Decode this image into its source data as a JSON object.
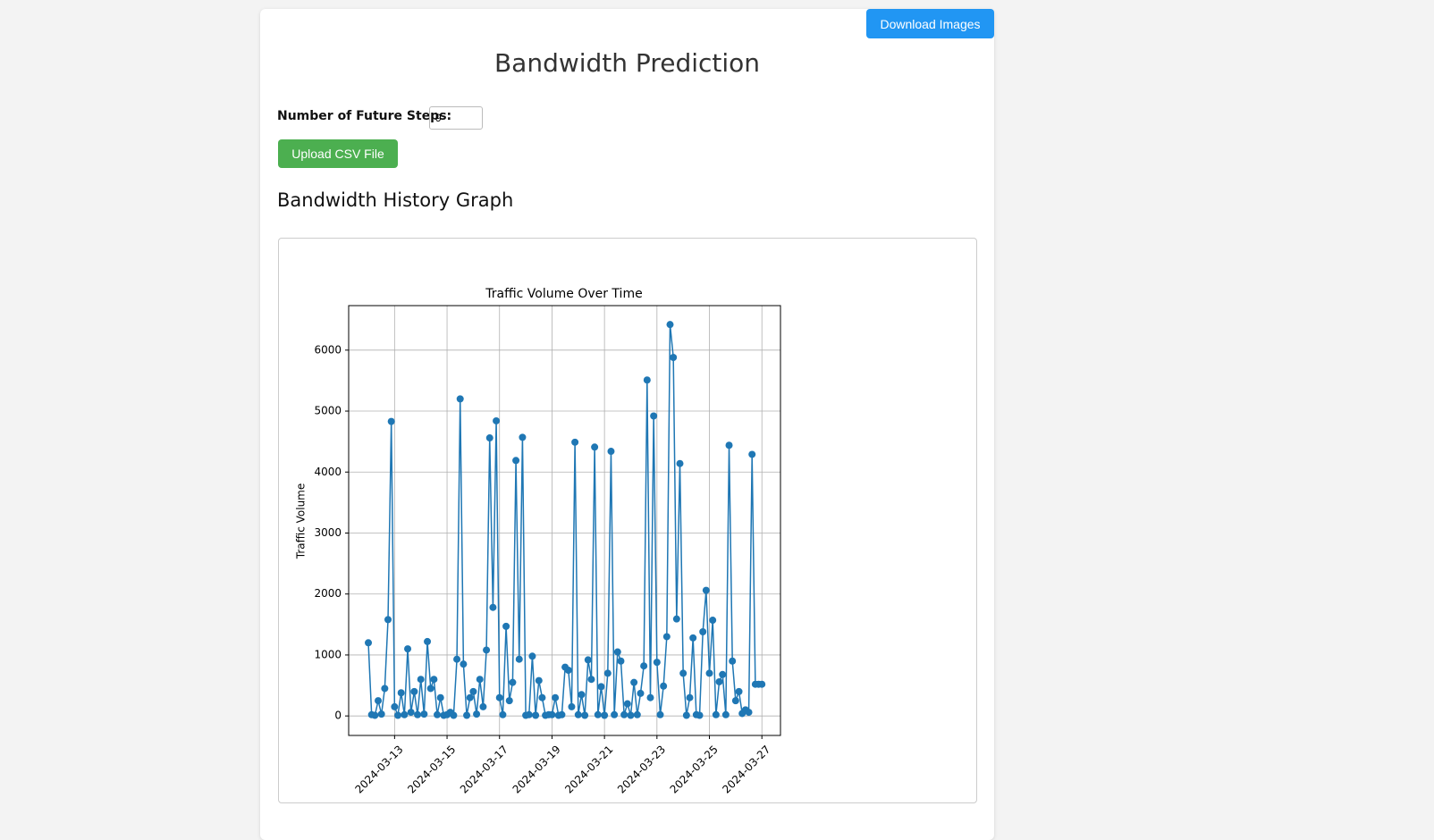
{
  "header": {
    "download_button": "Download Images",
    "title": "Bandwidth Prediction"
  },
  "form": {
    "steps_label": "Number of Future Steps:",
    "steps_value": "9",
    "upload_button": "Upload CSV File"
  },
  "section_title": "Bandwidth History Graph",
  "chart_data": {
    "type": "line",
    "title": "Traffic Volume Over Time",
    "y_label": "Traffic Volume",
    "color": "#1f77b4",
    "grid": true,
    "markers": true,
    "x": [
      "2024-03-12 00:00",
      "2024-03-12 03:00",
      "2024-03-12 06:00",
      "2024-03-12 09:00",
      "2024-03-12 12:00",
      "2024-03-12 15:00",
      "2024-03-12 18:00",
      "2024-03-12 21:00",
      "2024-03-13 00:00",
      "2024-03-13 03:00",
      "2024-03-13 06:00",
      "2024-03-13 09:00",
      "2024-03-13 12:00",
      "2024-03-13 15:00",
      "2024-03-13 18:00",
      "2024-03-13 21:00",
      "2024-03-14 00:00",
      "2024-03-14 03:00",
      "2024-03-14 06:00",
      "2024-03-14 09:00",
      "2024-03-14 12:00",
      "2024-03-14 15:00",
      "2024-03-14 18:00",
      "2024-03-14 21:00",
      "2024-03-15 00:00",
      "2024-03-15 03:00",
      "2024-03-15 06:00",
      "2024-03-15 09:00",
      "2024-03-15 12:00",
      "2024-03-15 15:00",
      "2024-03-15 18:00",
      "2024-03-15 21:00",
      "2024-03-16 00:00",
      "2024-03-16 03:00",
      "2024-03-16 06:00",
      "2024-03-16 09:00",
      "2024-03-16 12:00",
      "2024-03-16 15:00",
      "2024-03-16 18:00",
      "2024-03-16 21:00",
      "2024-03-17 00:00",
      "2024-03-17 03:00",
      "2024-03-17 06:00",
      "2024-03-17 09:00",
      "2024-03-17 12:00",
      "2024-03-17 15:00",
      "2024-03-17 18:00",
      "2024-03-17 21:00",
      "2024-03-18 00:00",
      "2024-03-18 03:00",
      "2024-03-18 06:00",
      "2024-03-18 09:00",
      "2024-03-18 12:00",
      "2024-03-18 15:00",
      "2024-03-18 18:00",
      "2024-03-18 21:00",
      "2024-03-19 00:00",
      "2024-03-19 03:00",
      "2024-03-19 06:00",
      "2024-03-19 09:00",
      "2024-03-19 12:00",
      "2024-03-19 15:00",
      "2024-03-19 18:00",
      "2024-03-19 21:00",
      "2024-03-20 00:00",
      "2024-03-20 03:00",
      "2024-03-20 06:00",
      "2024-03-20 09:00",
      "2024-03-20 12:00",
      "2024-03-20 15:00",
      "2024-03-20 18:00",
      "2024-03-20 21:00",
      "2024-03-21 00:00",
      "2024-03-21 03:00",
      "2024-03-21 06:00",
      "2024-03-21 09:00",
      "2024-03-21 12:00",
      "2024-03-21 15:00",
      "2024-03-21 18:00",
      "2024-03-21 21:00",
      "2024-03-22 00:00",
      "2024-03-22 03:00",
      "2024-03-22 06:00",
      "2024-03-22 09:00",
      "2024-03-22 12:00",
      "2024-03-22 15:00",
      "2024-03-22 18:00",
      "2024-03-22 21:00",
      "2024-03-23 00:00",
      "2024-03-23 03:00",
      "2024-03-23 06:00",
      "2024-03-23 09:00",
      "2024-03-23 12:00",
      "2024-03-23 15:00",
      "2024-03-23 18:00",
      "2024-03-23 21:00",
      "2024-03-24 00:00",
      "2024-03-24 03:00",
      "2024-03-24 06:00",
      "2024-03-24 09:00",
      "2024-03-24 12:00",
      "2024-03-24 15:00",
      "2024-03-24 18:00",
      "2024-03-24 21:00",
      "2024-03-25 00:00",
      "2024-03-25 03:00",
      "2024-03-25 06:00",
      "2024-03-25 09:00",
      "2024-03-25 12:00",
      "2024-03-25 15:00",
      "2024-03-25 18:00",
      "2024-03-25 21:00",
      "2024-03-26 00:00",
      "2024-03-26 03:00",
      "2024-03-26 06:00",
      "2024-03-26 09:00",
      "2024-03-26 12:00",
      "2024-03-26 15:00",
      "2024-03-26 18:00",
      "2024-03-26 21:00",
      "2024-03-27 00:00"
    ],
    "values": [
      1200,
      20,
      10,
      250,
      30,
      450,
      1580,
      4830,
      150,
      10,
      380,
      20,
      1100,
      60,
      400,
      20,
      600,
      30,
      1220,
      450,
      600,
      20,
      300,
      10,
      20,
      60,
      10,
      930,
      5200,
      850,
      10,
      300,
      400,
      30,
      600,
      150,
      1080,
      4560,
      1780,
      4840,
      300,
      20,
      1470,
      250,
      550,
      4190,
      930,
      4570,
      10,
      20,
      980,
      10,
      580,
      300,
      10,
      20,
      20,
      300,
      10,
      20,
      800,
      750,
      150,
      4490,
      20,
      350,
      10,
      920,
      600,
      4410,
      20,
      480,
      10,
      700,
      4340,
      20,
      1050,
      900,
      20,
      200,
      10,
      550,
      20,
      370,
      820,
      5510,
      300,
      4920,
      880,
      20,
      490,
      1300,
      6420,
      5880,
      1590,
      4140,
      700,
      10,
      300,
      1280,
      20,
      10,
      1380,
      2060,
      700,
      1570,
      20,
      560,
      680,
      20,
      4440,
      900,
      250,
      400,
      40,
      100,
      60,
      4290,
      520,
      520,
      520
    ],
    "xlim": [
      "2024-03-11 06:00",
      "2024-03-27 17:00"
    ],
    "xticks": [
      "2024-03-13",
      "2024-03-15",
      "2024-03-17",
      "2024-03-19",
      "2024-03-21",
      "2024-03-23",
      "2024-03-25",
      "2024-03-27"
    ],
    "ylim": [
      -320,
      6730
    ],
    "yticks": [
      0,
      1000,
      2000,
      3000,
      4000,
      5000,
      6000
    ]
  }
}
